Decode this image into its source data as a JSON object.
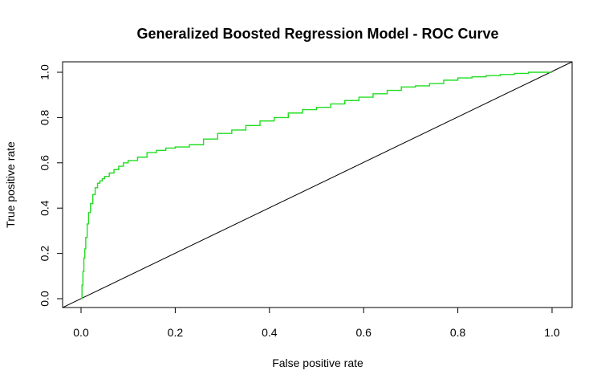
{
  "chart_data": {
    "type": "line",
    "title": "Generalized Boosted Regression Model - ROC Curve",
    "xlabel": "False positive rate",
    "ylabel": "True positive rate",
    "xlim": [
      0,
      1
    ],
    "ylim": [
      0,
      1
    ],
    "xticks": [
      "0.0",
      "0.2",
      "0.4",
      "0.6",
      "0.8",
      "1.0"
    ],
    "yticks": [
      "0.0",
      "0.2",
      "0.4",
      "0.6",
      "0.8",
      "1.0"
    ],
    "grid": false,
    "colors": {
      "roc": "#22dd22",
      "diagonal": "#000000",
      "axes": "#000000"
    },
    "series": [
      {
        "x": [
          0.0,
          0.002,
          0.004,
          0.006,
          0.008,
          0.01,
          0.013,
          0.016,
          0.02,
          0.025,
          0.03,
          0.035,
          0.04,
          0.045,
          0.05,
          0.06,
          0.07,
          0.08,
          0.09,
          0.1,
          0.12,
          0.14,
          0.16,
          0.18,
          0.2,
          0.23,
          0.26,
          0.29,
          0.32,
          0.35,
          0.38,
          0.41,
          0.44,
          0.47,
          0.5,
          0.53,
          0.56,
          0.59,
          0.62,
          0.65,
          0.68,
          0.71,
          0.74,
          0.77,
          0.8,
          0.83,
          0.86,
          0.89,
          0.92,
          0.95,
          0.98,
          1.0
        ],
        "y": [
          0.0,
          0.06,
          0.12,
          0.18,
          0.22,
          0.27,
          0.33,
          0.38,
          0.42,
          0.46,
          0.49,
          0.51,
          0.52,
          0.53,
          0.54,
          0.555,
          0.57,
          0.585,
          0.6,
          0.61,
          0.625,
          0.645,
          0.655,
          0.665,
          0.67,
          0.68,
          0.705,
          0.73,
          0.745,
          0.765,
          0.785,
          0.8,
          0.82,
          0.835,
          0.845,
          0.86,
          0.875,
          0.89,
          0.905,
          0.92,
          0.935,
          0.94,
          0.95,
          0.965,
          0.975,
          0.98,
          0.985,
          0.99,
          0.995,
          1.0,
          1.0,
          1.0
        ]
      },
      {
        "x": [
          0,
          1
        ],
        "y": [
          0,
          1
        ]
      }
    ]
  }
}
